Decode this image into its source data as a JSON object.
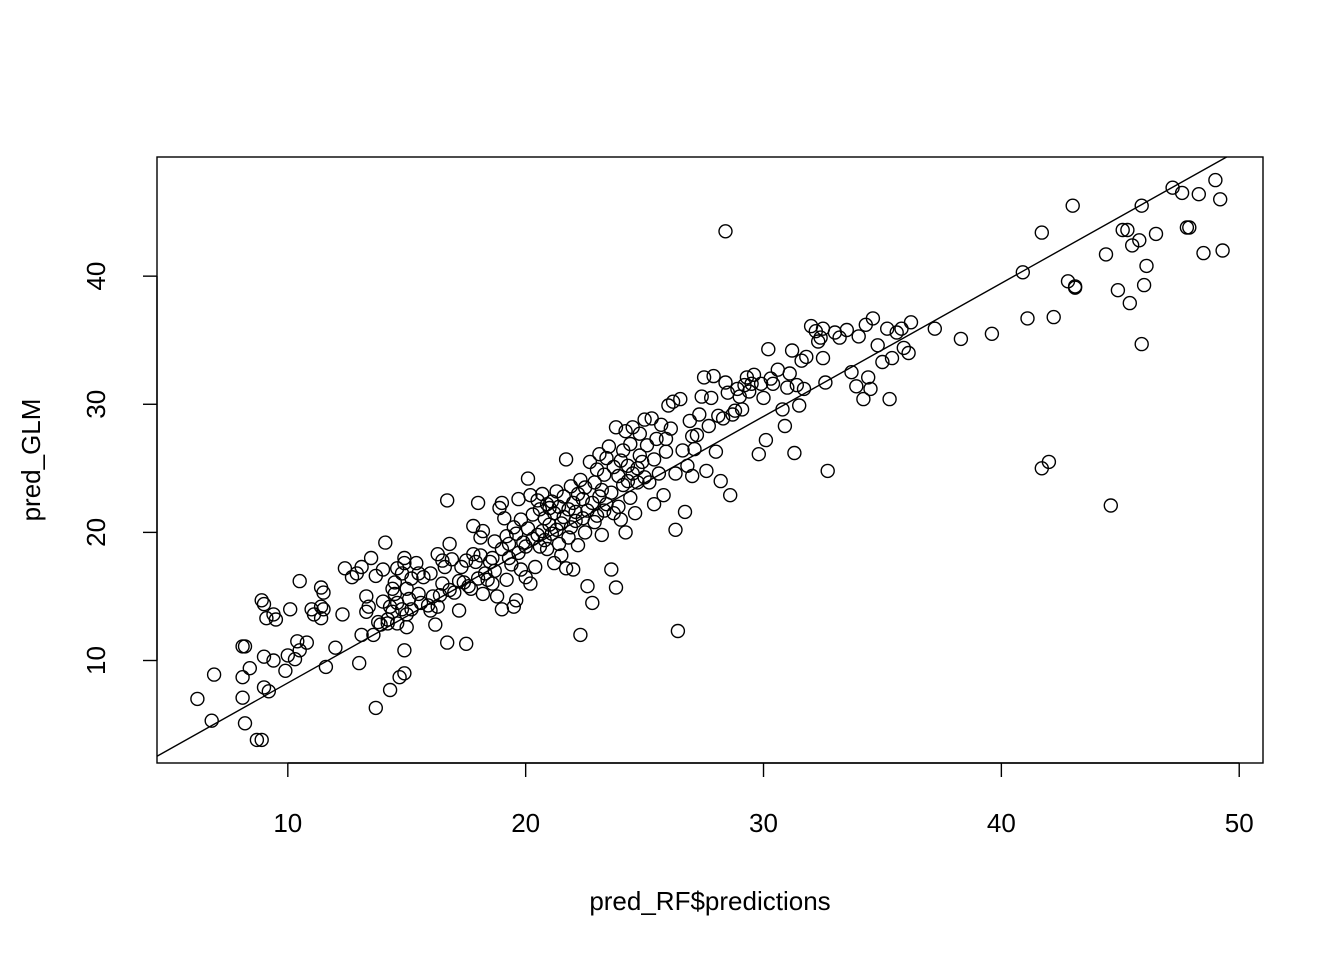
{
  "chart_data": {
    "type": "scatter",
    "title": "",
    "xlabel": "pred_RF$predictions",
    "ylabel": "pred_GLM",
    "xlim": [
      4.5,
      51.0
    ],
    "ylim": [
      2.0,
      49.3
    ],
    "xticks": [
      10,
      20,
      30,
      40,
      50
    ],
    "yticks": [
      10,
      20,
      30,
      40
    ],
    "grid": false,
    "legend": "none",
    "reference_line": {
      "intercept": -2.15,
      "slope": 1.04
    },
    "point_color": "#000000",
    "points": [
      [
        6.2,
        7.0
      ],
      [
        6.8,
        5.3
      ],
      [
        6.9,
        8.9
      ],
      [
        8.1,
        11.1
      ],
      [
        8.1,
        8.7
      ],
      [
        8.1,
        7.1
      ],
      [
        8.2,
        5.1
      ],
      [
        8.2,
        11.1
      ],
      [
        8.4,
        9.4
      ],
      [
        8.7,
        3.8
      ],
      [
        8.9,
        3.8
      ],
      [
        8.9,
        14.7
      ],
      [
        9.0,
        14.4
      ],
      [
        9.0,
        7.9
      ],
      [
        9.0,
        10.3
      ],
      [
        9.1,
        13.3
      ],
      [
        9.2,
        7.6
      ],
      [
        9.4,
        13.6
      ],
      [
        9.4,
        10.0
      ],
      [
        9.5,
        13.2
      ],
      [
        9.9,
        9.2
      ],
      [
        10.0,
        10.4
      ],
      [
        10.1,
        14.0
      ],
      [
        10.3,
        10.1
      ],
      [
        10.4,
        11.5
      ],
      [
        10.5,
        16.2
      ],
      [
        10.5,
        10.8
      ],
      [
        10.8,
        11.4
      ],
      [
        11.0,
        14.0
      ],
      [
        11.1,
        13.6
      ],
      [
        11.4,
        14.2
      ],
      [
        11.4,
        15.7
      ],
      [
        11.4,
        13.3
      ],
      [
        11.5,
        14.0
      ],
      [
        11.5,
        15.3
      ],
      [
        11.6,
        9.5
      ],
      [
        12.0,
        11.0
      ],
      [
        12.3,
        13.6
      ],
      [
        12.4,
        17.2
      ],
      [
        12.7,
        16.5
      ],
      [
        12.9,
        16.8
      ],
      [
        13.0,
        9.8
      ],
      [
        13.1,
        12.0
      ],
      [
        13.1,
        17.3
      ],
      [
        13.3,
        13.8
      ],
      [
        13.3,
        15.0
      ],
      [
        13.4,
        14.2
      ],
      [
        13.5,
        18.0
      ],
      [
        13.6,
        12.0
      ],
      [
        13.7,
        6.3
      ],
      [
        13.7,
        16.6
      ],
      [
        13.8,
        13.0
      ],
      [
        13.9,
        12.8
      ],
      [
        14.0,
        14.6
      ],
      [
        14.0,
        17.1
      ],
      [
        14.1,
        19.2
      ],
      [
        14.2,
        13.2
      ],
      [
        14.2,
        12.9
      ],
      [
        14.3,
        14.2
      ],
      [
        14.3,
        7.7
      ],
      [
        14.4,
        15.6
      ],
      [
        14.4,
        13.8
      ],
      [
        14.5,
        15.2
      ],
      [
        14.5,
        16.1
      ],
      [
        14.6,
        17.2
      ],
      [
        14.6,
        12.9
      ],
      [
        14.6,
        14.5
      ],
      [
        14.7,
        8.7
      ],
      [
        14.8,
        16.8
      ],
      [
        14.8,
        14.0
      ],
      [
        14.9,
        9.0
      ],
      [
        14.9,
        10.8
      ],
      [
        14.9,
        17.6
      ],
      [
        14.9,
        18.0
      ],
      [
        15.0,
        15.6
      ],
      [
        15.0,
        13.6
      ],
      [
        15.0,
        12.6
      ],
      [
        15.1,
        14.8
      ],
      [
        15.2,
        16.4
      ],
      [
        15.2,
        14.0
      ],
      [
        15.4,
        17.6
      ],
      [
        15.5,
        15.2
      ],
      [
        15.5,
        16.8
      ],
      [
        15.6,
        14.5
      ],
      [
        15.7,
        16.5
      ],
      [
        15.9,
        14.3
      ],
      [
        16.0,
        16.8
      ],
      [
        16.0,
        13.9
      ],
      [
        16.1,
        15.0
      ],
      [
        16.2,
        12.8
      ],
      [
        16.3,
        14.2
      ],
      [
        16.3,
        18.3
      ],
      [
        16.4,
        15.1
      ],
      [
        16.5,
        17.8
      ],
      [
        16.5,
        16.0
      ],
      [
        16.6,
        17.3
      ],
      [
        16.7,
        11.4
      ],
      [
        16.7,
        22.5
      ],
      [
        16.8,
        19.1
      ],
      [
        16.8,
        15.5
      ],
      [
        16.9,
        17.9
      ],
      [
        17.0,
        15.3
      ],
      [
        17.2,
        16.2
      ],
      [
        17.2,
        13.9
      ],
      [
        17.3,
        17.3
      ],
      [
        17.4,
        16.1
      ],
      [
        17.5,
        11.3
      ],
      [
        17.5,
        17.8
      ],
      [
        17.6,
        15.8
      ],
      [
        17.7,
        15.6
      ],
      [
        17.8,
        18.3
      ],
      [
        17.8,
        20.5
      ],
      [
        17.9,
        17.7
      ],
      [
        18.0,
        16.4
      ],
      [
        18.0,
        22.3
      ],
      [
        18.1,
        19.6
      ],
      [
        18.1,
        18.2
      ],
      [
        18.2,
        15.2
      ],
      [
        18.2,
        20.1
      ],
      [
        18.3,
        16.8
      ],
      [
        18.4,
        16.3
      ],
      [
        18.5,
        17.7
      ],
      [
        18.6,
        16.0
      ],
      [
        18.6,
        18.0
      ],
      [
        18.7,
        19.3
      ],
      [
        18.7,
        17.0
      ],
      [
        18.8,
        15.0
      ],
      [
        18.9,
        21.9
      ],
      [
        19.0,
        22.3
      ],
      [
        19.0,
        14.0
      ],
      [
        19.0,
        18.7
      ],
      [
        19.1,
        21.1
      ],
      [
        19.2,
        19.7
      ],
      [
        19.2,
        16.3
      ],
      [
        19.3,
        18.0
      ],
      [
        19.3,
        19.1
      ],
      [
        19.4,
        17.5
      ],
      [
        19.5,
        14.2
      ],
      [
        19.5,
        20.4
      ],
      [
        19.6,
        14.7
      ],
      [
        19.6,
        19.9
      ],
      [
        19.7,
        18.4
      ],
      [
        19.7,
        22.6
      ],
      [
        19.8,
        17.1
      ],
      [
        19.8,
        21.0
      ],
      [
        19.9,
        19.2
      ],
      [
        20.0,
        16.5
      ],
      [
        20.0,
        18.9
      ],
      [
        20.1,
        24.2
      ],
      [
        20.1,
        20.3
      ],
      [
        20.2,
        16.0
      ],
      [
        20.2,
        22.9
      ],
      [
        20.3,
        19.5
      ],
      [
        20.3,
        21.4
      ],
      [
        20.4,
        17.3
      ],
      [
        20.5,
        19.8
      ],
      [
        20.5,
        22.5
      ],
      [
        20.6,
        21.8
      ],
      [
        20.6,
        18.9
      ],
      [
        20.7,
        20.1
      ],
      [
        20.7,
        23.0
      ],
      [
        20.8,
        19.4
      ],
      [
        20.8,
        21.1
      ],
      [
        20.9,
        22.2
      ],
      [
        20.9,
        18.7
      ],
      [
        21.0,
        20.6
      ],
      [
        21.0,
        21.9
      ],
      [
        21.1,
        19.9
      ],
      [
        21.1,
        22.4
      ],
      [
        21.2,
        17.6
      ],
      [
        21.2,
        21.5
      ],
      [
        21.3,
        20.2
      ],
      [
        21.3,
        23.2
      ],
      [
        21.4,
        19.1
      ],
      [
        21.4,
        22.0
      ],
      [
        21.5,
        20.7
      ],
      [
        21.5,
        18.2
      ],
      [
        21.6,
        21.2
      ],
      [
        21.6,
        22.8
      ],
      [
        21.7,
        17.2
      ],
      [
        21.7,
        25.7
      ],
      [
        21.8,
        19.6
      ],
      [
        21.8,
        21.8
      ],
      [
        21.9,
        20.4
      ],
      [
        21.9,
        23.6
      ],
      [
        22.0,
        17.1
      ],
      [
        22.0,
        22.3
      ],
      [
        22.1,
        20.9
      ],
      [
        22.1,
        21.6
      ],
      [
        22.2,
        19.0
      ],
      [
        22.2,
        23.0
      ],
      [
        22.3,
        12.0
      ],
      [
        22.3,
        24.1
      ],
      [
        22.4,
        21.1
      ],
      [
        22.4,
        22.6
      ],
      [
        22.5,
        20.0
      ],
      [
        22.5,
        23.5
      ],
      [
        22.6,
        15.8
      ],
      [
        22.6,
        21.7
      ],
      [
        22.7,
        25.5
      ],
      [
        22.8,
        14.5
      ],
      [
        22.8,
        22.3
      ],
      [
        22.9,
        20.8
      ],
      [
        22.9,
        23.9
      ],
      [
        23.0,
        21.3
      ],
      [
        23.0,
        24.9
      ],
      [
        23.1,
        22.8
      ],
      [
        23.1,
        26.1
      ],
      [
        23.2,
        23.3
      ],
      [
        23.2,
        19.8
      ],
      [
        23.3,
        21.7
      ],
      [
        23.3,
        24.5
      ],
      [
        23.4,
        22.2
      ],
      [
        23.4,
        25.8
      ],
      [
        23.5,
        26.7
      ],
      [
        23.6,
        23.1
      ],
      [
        23.6,
        17.1
      ],
      [
        23.7,
        21.5
      ],
      [
        23.7,
        25.1
      ],
      [
        23.8,
        28.2
      ],
      [
        23.8,
        15.7
      ],
      [
        23.9,
        22.0
      ],
      [
        23.9,
        24.4
      ],
      [
        24.0,
        21.0
      ],
      [
        24.0,
        25.6
      ],
      [
        24.1,
        23.7
      ],
      [
        24.1,
        26.4
      ],
      [
        24.2,
        20.0
      ],
      [
        24.2,
        27.9
      ],
      [
        24.3,
        24.0
      ],
      [
        24.3,
        25.2
      ],
      [
        24.4,
        22.7
      ],
      [
        24.4,
        26.9
      ],
      [
        24.5,
        24.6
      ],
      [
        24.5,
        28.2
      ],
      [
        24.6,
        21.5
      ],
      [
        24.7,
        25.0
      ],
      [
        24.7,
        23.9
      ],
      [
        24.8,
        26.0
      ],
      [
        24.8,
        27.7
      ],
      [
        24.9,
        25.5
      ],
      [
        25.0,
        28.8
      ],
      [
        25.0,
        24.3
      ],
      [
        25.1,
        26.8
      ],
      [
        25.2,
        23.9
      ],
      [
        25.3,
        28.9
      ],
      [
        25.4,
        25.7
      ],
      [
        25.4,
        22.2
      ],
      [
        25.5,
        27.3
      ],
      [
        25.6,
        24.6
      ],
      [
        25.7,
        28.4
      ],
      [
        25.8,
        22.9
      ],
      [
        25.9,
        27.3
      ],
      [
        25.9,
        26.3
      ],
      [
        26.0,
        29.9
      ],
      [
        26.1,
        28.1
      ],
      [
        26.2,
        30.2
      ],
      [
        26.3,
        24.6
      ],
      [
        26.3,
        20.2
      ],
      [
        26.4,
        12.3
      ],
      [
        26.5,
        30.4
      ],
      [
        26.6,
        26.4
      ],
      [
        26.7,
        21.6
      ],
      [
        26.8,
        25.2
      ],
      [
        26.9,
        28.7
      ],
      [
        27.0,
        24.4
      ],
      [
        27.0,
        27.5
      ],
      [
        27.1,
        26.5
      ],
      [
        27.2,
        27.6
      ],
      [
        27.3,
        29.2
      ],
      [
        27.4,
        30.6
      ],
      [
        27.5,
        32.1
      ],
      [
        27.6,
        24.8
      ],
      [
        27.7,
        28.3
      ],
      [
        27.8,
        30.5
      ],
      [
        27.9,
        32.2
      ],
      [
        28.0,
        26.3
      ],
      [
        28.1,
        29.1
      ],
      [
        28.2,
        24.0
      ],
      [
        28.3,
        28.9
      ],
      [
        28.4,
        43.5
      ],
      [
        28.4,
        31.7
      ],
      [
        28.5,
        30.9
      ],
      [
        28.6,
        22.9
      ],
      [
        28.7,
        29.2
      ],
      [
        28.8,
        29.5
      ],
      [
        28.9,
        31.2
      ],
      [
        29.0,
        30.6
      ],
      [
        29.1,
        29.6
      ],
      [
        29.2,
        31.5
      ],
      [
        29.3,
        32.1
      ],
      [
        29.4,
        31.0
      ],
      [
        29.5,
        31.6
      ],
      [
        29.6,
        32.3
      ],
      [
        29.8,
        26.1
      ],
      [
        29.9,
        31.6
      ],
      [
        30.0,
        30.5
      ],
      [
        30.1,
        27.2
      ],
      [
        30.2,
        34.3
      ],
      [
        30.3,
        32.0
      ],
      [
        30.4,
        31.6
      ],
      [
        30.6,
        32.7
      ],
      [
        30.8,
        29.6
      ],
      [
        30.9,
        28.3
      ],
      [
        31.0,
        31.3
      ],
      [
        31.1,
        32.4
      ],
      [
        31.2,
        34.2
      ],
      [
        31.3,
        26.2
      ],
      [
        31.4,
        31.5
      ],
      [
        31.5,
        29.9
      ],
      [
        31.6,
        33.4
      ],
      [
        31.7,
        31.2
      ],
      [
        31.8,
        33.7
      ],
      [
        32.0,
        36.1
      ],
      [
        32.2,
        35.7
      ],
      [
        32.3,
        34.9
      ],
      [
        32.4,
        35.2
      ],
      [
        32.5,
        33.6
      ],
      [
        32.5,
        35.9
      ],
      [
        32.6,
        31.7
      ],
      [
        32.7,
        24.8
      ],
      [
        33.0,
        35.6
      ],
      [
        33.2,
        35.2
      ],
      [
        33.5,
        35.8
      ],
      [
        33.7,
        32.5
      ],
      [
        33.9,
        31.4
      ],
      [
        34.0,
        35.3
      ],
      [
        34.2,
        30.4
      ],
      [
        34.3,
        36.2
      ],
      [
        34.4,
        32.1
      ],
      [
        34.5,
        31.2
      ],
      [
        34.6,
        36.7
      ],
      [
        34.8,
        34.6
      ],
      [
        35.0,
        33.3
      ],
      [
        35.2,
        35.9
      ],
      [
        35.3,
        30.4
      ],
      [
        35.4,
        33.6
      ],
      [
        35.6,
        35.6
      ],
      [
        35.8,
        35.9
      ],
      [
        35.9,
        34.4
      ],
      [
        36.1,
        34.0
      ],
      [
        36.2,
        36.4
      ],
      [
        37.2,
        35.9
      ],
      [
        38.3,
        35.1
      ],
      [
        39.6,
        35.5
      ],
      [
        40.9,
        40.3
      ],
      [
        41.1,
        36.7
      ],
      [
        41.7,
        43.4
      ],
      [
        41.7,
        25.0
      ],
      [
        42.0,
        25.5
      ],
      [
        42.2,
        36.8
      ],
      [
        42.8,
        39.6
      ],
      [
        43.0,
        45.5
      ],
      [
        43.1,
        39.1
      ],
      [
        43.1,
        39.2
      ],
      [
        44.4,
        41.7
      ],
      [
        44.6,
        22.1
      ],
      [
        44.9,
        38.9
      ],
      [
        45.1,
        43.6
      ],
      [
        45.3,
        43.6
      ],
      [
        45.4,
        37.9
      ],
      [
        45.5,
        42.4
      ],
      [
        45.8,
        42.8
      ],
      [
        45.9,
        45.5
      ],
      [
        45.9,
        34.7
      ],
      [
        46.0,
        39.3
      ],
      [
        46.1,
        40.8
      ],
      [
        46.5,
        43.3
      ],
      [
        47.2,
        46.9
      ],
      [
        47.6,
        46.5
      ],
      [
        47.8,
        43.8
      ],
      [
        47.9,
        43.8
      ],
      [
        48.3,
        46.4
      ],
      [
        48.5,
        41.8
      ],
      [
        49.0,
        47.5
      ],
      [
        49.2,
        46.0
      ],
      [
        49.3,
        42.0
      ]
    ]
  }
}
